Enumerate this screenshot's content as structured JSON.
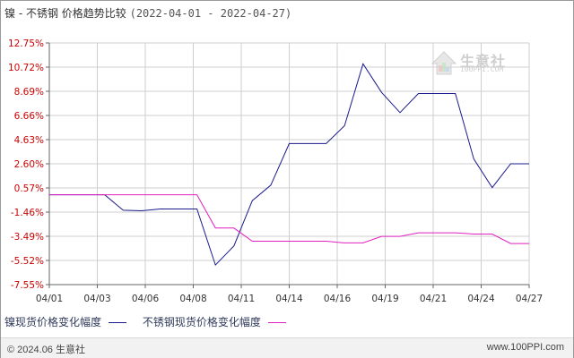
{
  "header": {
    "title": "镍 - 不锈钢 价格趋势比较",
    "date_range": "(2022-04-01 - 2022-04-27)"
  },
  "watermark": {
    "name": "生意社",
    "url": "100PPI.COM"
  },
  "footer": {
    "copyright": "© 2024.06 生意社",
    "website": "www.100PPI.com"
  },
  "colors": {
    "nickel": "#1a1a8c",
    "stainless": "#e020c0",
    "y_label": "#cc0000",
    "grid": "#cfcfcf"
  },
  "chart_data": {
    "type": "line",
    "title": "镍 - 不锈钢 价格趋势比较",
    "xlabel": "",
    "ylabel": "",
    "y_unit": "%",
    "y_ticks": [
      "12.75%",
      "10.72%",
      "8.69%",
      "6.66%",
      "4.63%",
      "2.60%",
      "0.57%",
      "-1.46%",
      "-3.49%",
      "-5.52%",
      "-7.55%"
    ],
    "ylim": [
      -7.55,
      12.75
    ],
    "x_ticks": [
      "04/01",
      "04/03",
      "04/06",
      "04/08",
      "04/11",
      "04/14",
      "04/16",
      "04/19",
      "04/21",
      "04/24",
      "04/27"
    ],
    "x": [
      "04/01",
      "04/02",
      "04/03",
      "04/04",
      "04/05",
      "04/06",
      "04/07",
      "04/08",
      "04/09",
      "04/10",
      "04/11",
      "04/12",
      "04/13",
      "04/14",
      "04/15",
      "04/16",
      "04/17",
      "04/18",
      "04/19",
      "04/20",
      "04/21",
      "04/22",
      "04/23",
      "04/24",
      "04/25",
      "04/26",
      "04/27"
    ],
    "grid": true,
    "legend_position": "bottom",
    "series": [
      {
        "name": "镍现货价格变化幅度",
        "color": "#1a1a8c",
        "values": [
          0,
          0,
          0,
          0,
          -1.3,
          -1.35,
          -1.2,
          -1.2,
          -1.2,
          -5.9,
          -4.3,
          -0.5,
          0.8,
          4.3,
          4.3,
          4.3,
          5.8,
          11.0,
          8.6,
          6.9,
          8.5,
          8.5,
          8.5,
          3.0,
          0.6,
          2.6,
          2.6
        ]
      },
      {
        "name": "不锈钢现货价格变化幅度",
        "color": "#e020c0",
        "values": [
          0,
          0,
          0,
          0,
          0,
          0,
          0,
          0,
          0,
          -2.8,
          -2.8,
          -3.9,
          -3.9,
          -3.9,
          -3.9,
          -3.9,
          -4.05,
          -4.05,
          -3.5,
          -3.5,
          -3.2,
          -3.2,
          -3.2,
          -3.3,
          -3.3,
          -4.1,
          -4.1
        ]
      }
    ]
  }
}
